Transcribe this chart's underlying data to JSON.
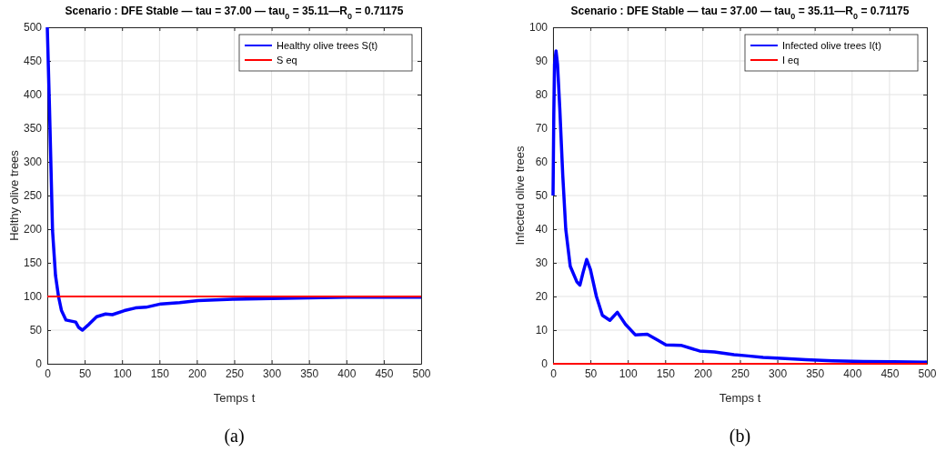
{
  "chart_data": [
    {
      "type": "line",
      "title": "Scenario : DFE Stable — tau = 37.00 — tau$_{0}$ = 35.11—R$_{0}$ = 0.71175",
      "xlabel": "Temps t",
      "ylabel": "Helthy olive trees",
      "annotations": [
        "(a)"
      ],
      "xlim": [
        0,
        500
      ],
      "ylim": [
        0,
        500
      ],
      "xticks": [
        0,
        50,
        100,
        150,
        200,
        250,
        300,
        350,
        400,
        450,
        500
      ],
      "yticks": [
        0,
        50,
        100,
        150,
        200,
        250,
        300,
        350,
        400,
        450,
        500
      ],
      "grid": true,
      "legend": "top right",
      "series": [
        {
          "name": "Healthy olive trees S(t)",
          "color": "#0000ff",
          "x": [
            0,
            3,
            5,
            7,
            11,
            15,
            19,
            25,
            38,
            42,
            47,
            56,
            66,
            78,
            87,
            103,
            118,
            132,
            152,
            177,
            202,
            250,
            300,
            350,
            400,
            450,
            500
          ],
          "values": [
            500,
            378,
            288,
            198,
            131,
            100,
            79,
            65,
            62,
            54,
            50,
            59,
            70,
            74,
            73,
            79,
            83,
            84,
            89,
            91,
            94,
            96,
            97,
            98,
            99,
            99,
            99
          ]
        },
        {
          "name": "S eq",
          "color": "#ff0000",
          "x": [
            0,
            500
          ],
          "values": [
            100,
            100
          ]
        }
      ]
    },
    {
      "type": "line",
      "title": "Scenario : DFE Stable — tau = 37.00 — tau$_{0}$ = 35.11—R$_{0}$ = 0.71175",
      "xlabel": "Temps t",
      "ylabel": "Infected olive trees",
      "annotations": [
        "(b)"
      ],
      "xlim": [
        0,
        500
      ],
      "ylim": [
        0,
        100
      ],
      "xticks": [
        0,
        50,
        100,
        150,
        200,
        250,
        300,
        350,
        400,
        450,
        500
      ],
      "yticks": [
        0,
        10,
        20,
        30,
        40,
        50,
        60,
        70,
        80,
        90,
        100
      ],
      "grid": true,
      "legend": "top right",
      "series": [
        {
          "name": "Infected olive trees I(t)",
          "color": "#0000ff",
          "x": [
            0,
            1,
            2,
            4,
            6,
            9,
            13,
            17,
            23,
            32,
            36,
            40,
            45,
            50,
            58,
            66,
            76,
            86,
            97,
            110,
            126,
            140,
            151,
            171,
            196,
            216,
            242,
            258,
            281,
            305,
            338,
            374,
            415,
            455,
            500
          ],
          "values": [
            50,
            74,
            89,
            93,
            89,
            76,
            56,
            40,
            29,
            24.3,
            23.4,
            27,
            31,
            28,
            20,
            14.4,
            12.9,
            15.3,
            11.7,
            8.6,
            8.8,
            7,
            5.6,
            5.5,
            3.8,
            3.5,
            2.7,
            2.4,
            1.9,
            1.6,
            1.2,
            0.9,
            0.7,
            0.6,
            0.5
          ]
        },
        {
          "name": "I eq",
          "color": "#ff0000",
          "x": [
            0,
            500
          ],
          "values": [
            0,
            0
          ]
        }
      ]
    }
  ]
}
